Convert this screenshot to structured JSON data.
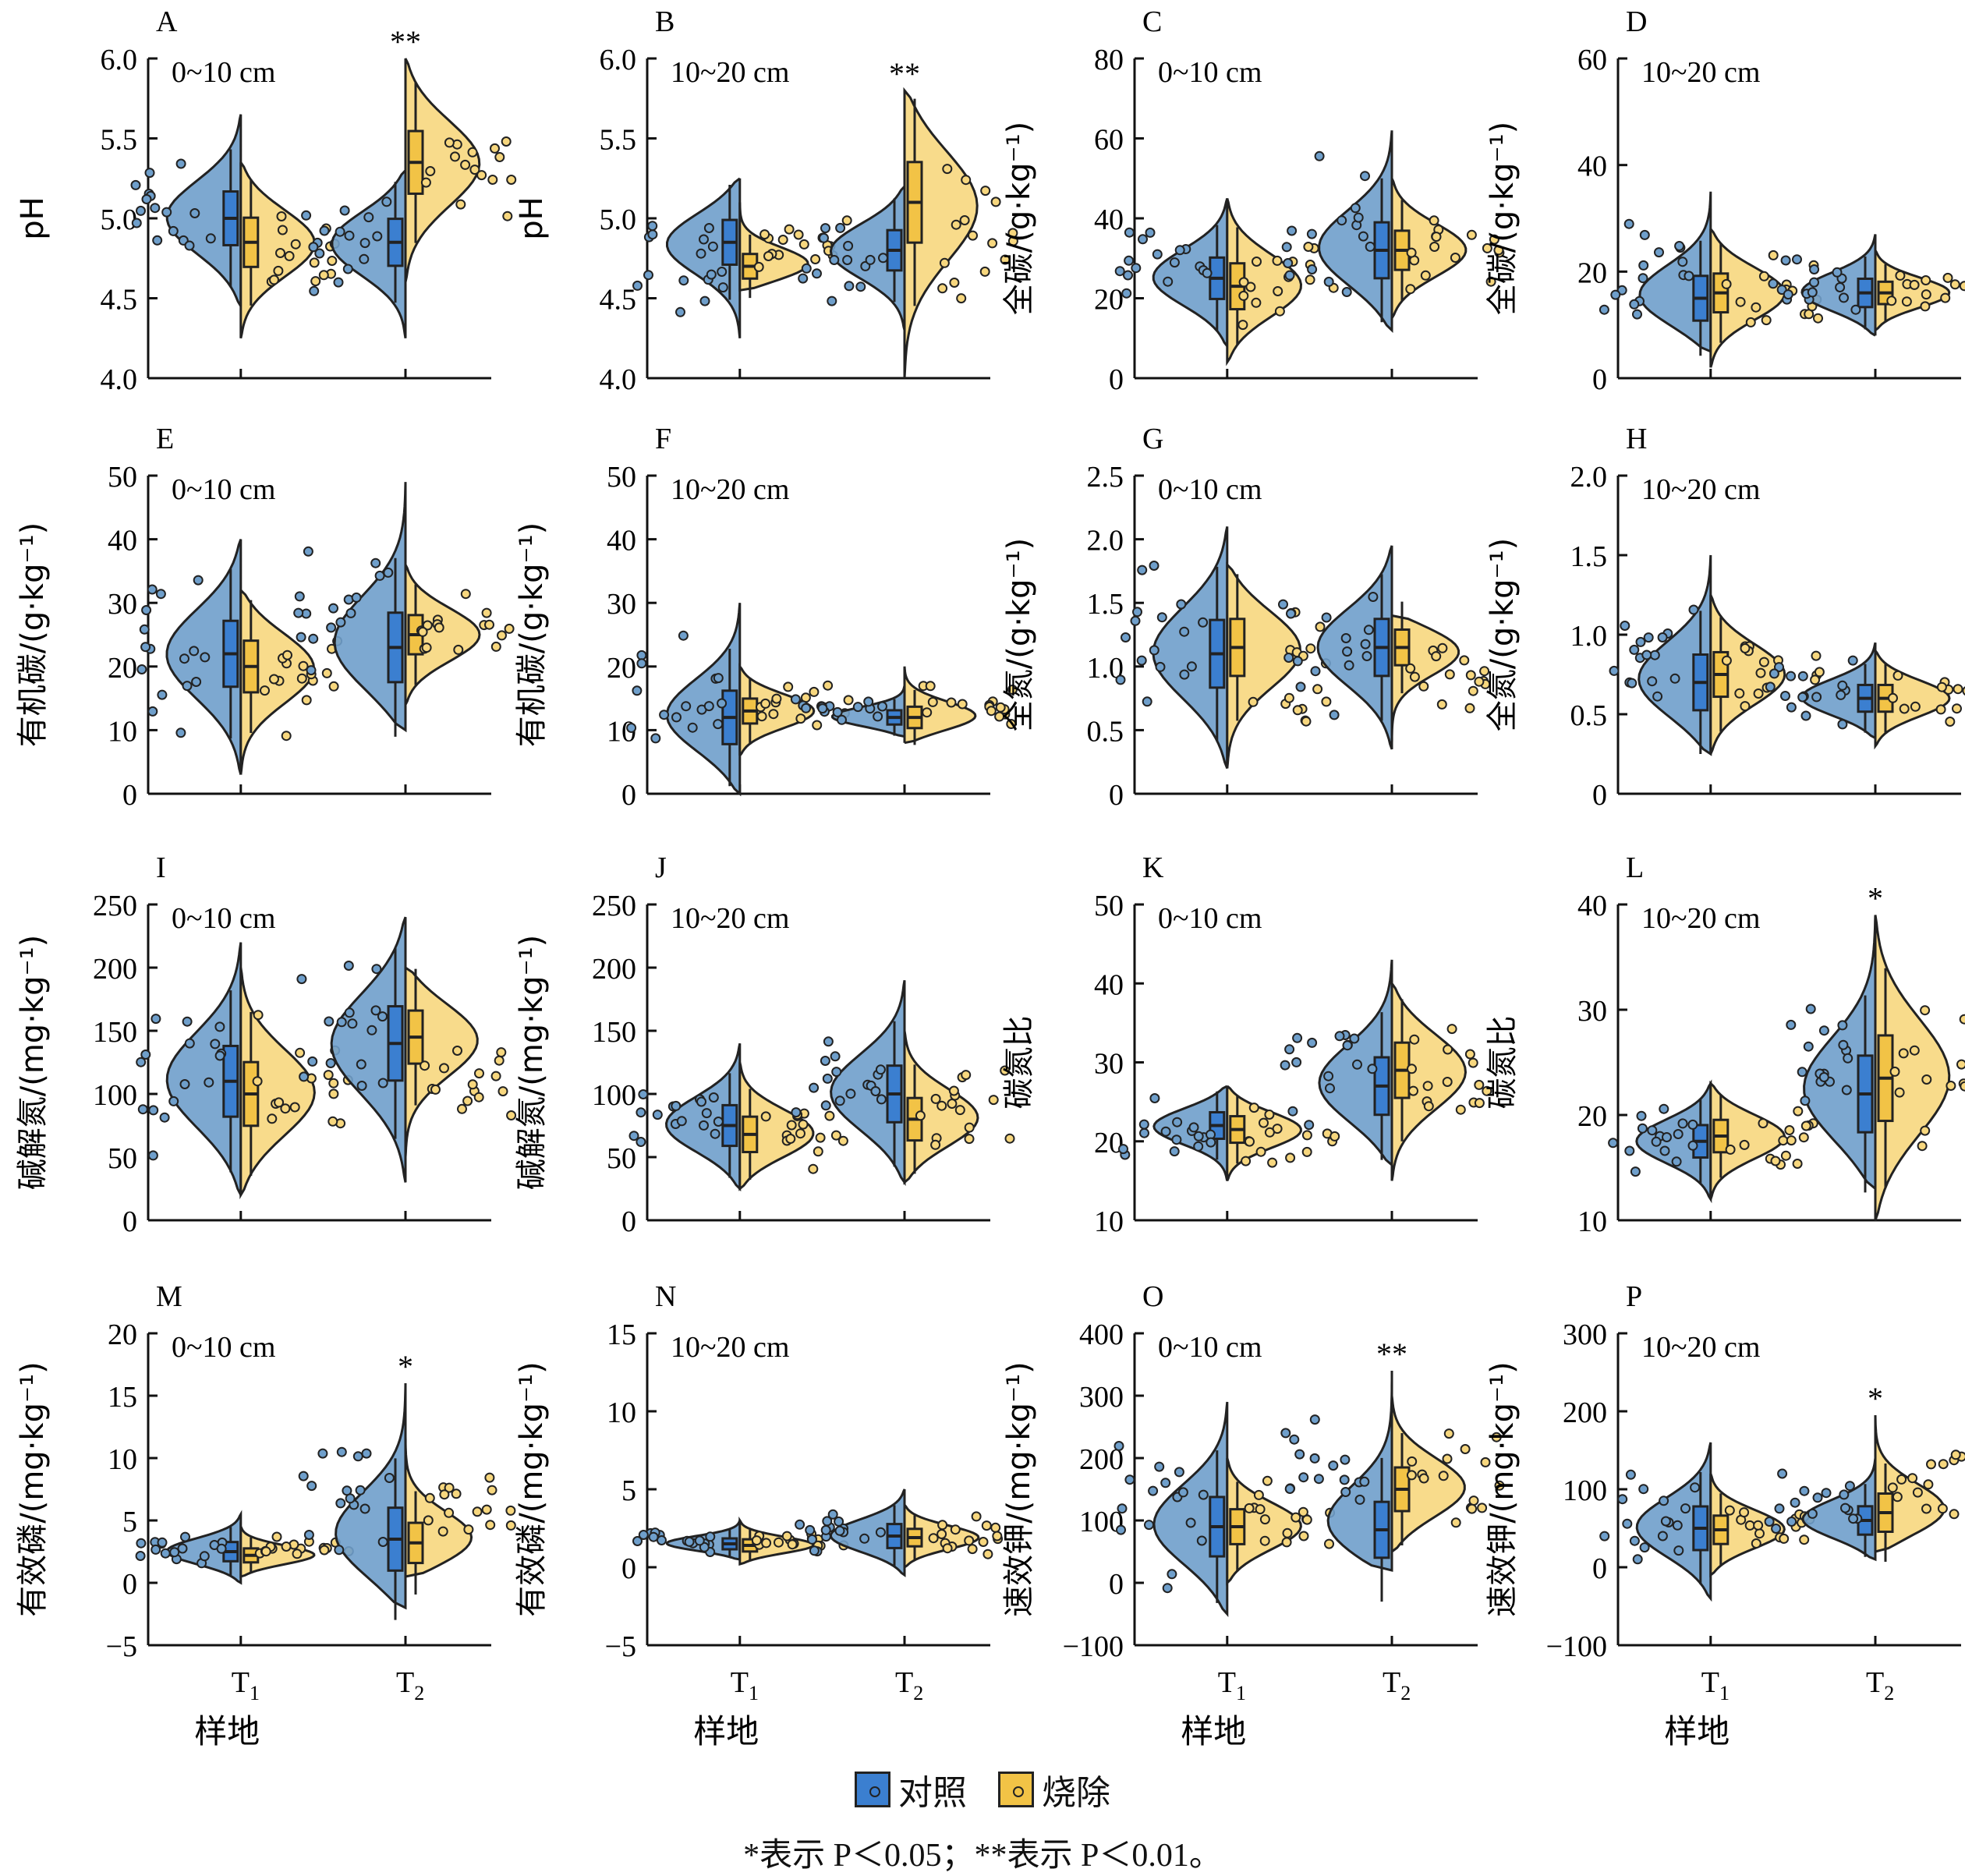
{
  "colors": {
    "control": "#6f9fcb",
    "burn": "#f7d77e",
    "control_box": "#3b7fd0",
    "burn_box": "#f2c346"
  },
  "legend": {
    "control": "对照",
    "burn": "烧除"
  },
  "footnote": "*表示 P＜0.05；**表示 P＜0.01。",
  "chart_data": [
    {
      "type": "violin",
      "panel": "A",
      "layer": "0~10 cm",
      "ylabel": "pH",
      "xlabel": "",
      "categories": [
        "T1",
        "T2"
      ],
      "ylim": [
        4.0,
        6.0
      ],
      "yticks": [
        "4.0",
        "4.5",
        "5.0",
        "5.5",
        "6.0"
      ],
      "series": [
        {
          "name": "对照",
          "medians": [
            5.0,
            4.85
          ],
          "ranges": [
            [
              4.45,
              5.65
            ],
            [
              4.25,
              5.3
            ]
          ]
        },
        {
          "name": "烧除",
          "medians": [
            4.85,
            5.35
          ],
          "ranges": [
            [
              4.25,
              5.35
            ],
            [
              4.6,
              6.0
            ]
          ]
        }
      ],
      "significance": [
        "",
        "**"
      ]
    },
    {
      "type": "violin",
      "panel": "B",
      "layer": "10~20 cm",
      "ylabel": "pH",
      "xlabel": "",
      "categories": [
        "T1",
        "T2"
      ],
      "ylim": [
        4.0,
        6.0
      ],
      "yticks": [
        "4.0",
        "4.5",
        "5.0",
        "5.5",
        "6.0"
      ],
      "series": [
        {
          "name": "对照",
          "medians": [
            4.85,
            4.8
          ],
          "ranges": [
            [
              4.25,
              5.25
            ],
            [
              4.3,
              5.2
            ]
          ]
        },
        {
          "name": "烧除",
          "medians": [
            4.7,
            5.1
          ],
          "ranges": [
            [
              4.55,
              5.1
            ],
            [
              4.0,
              5.8
            ]
          ]
        }
      ],
      "significance": [
        "",
        "**"
      ]
    },
    {
      "type": "violin",
      "panel": "C",
      "layer": "0~10 cm",
      "ylabel": "全碳/(g·kg⁻¹)",
      "xlabel": "",
      "categories": [
        "T1",
        "T2"
      ],
      "ylim": [
        0,
        80
      ],
      "yticks": [
        "0",
        "20",
        "40",
        "60",
        "80"
      ],
      "series": [
        {
          "name": "对照",
          "medians": [
            25,
            32
          ],
          "ranges": [
            [
              8,
              45
            ],
            [
              12,
              62
            ]
          ]
        },
        {
          "name": "烧除",
          "medians": [
            23,
            32
          ],
          "ranges": [
            [
              4,
              45
            ],
            [
              15,
              50
            ]
          ]
        }
      ],
      "significance": [
        "",
        ""
      ]
    },
    {
      "type": "violin",
      "panel": "D",
      "layer": "10~20 cm",
      "ylabel": "全碳/(g·kg⁻¹)",
      "xlabel": "",
      "categories": [
        "T1",
        "T2"
      ],
      "ylim": [
        0,
        60
      ],
      "yticks": [
        "0",
        "20",
        "40",
        "60"
      ],
      "series": [
        {
          "name": "对照",
          "medians": [
            15,
            16
          ],
          "ranges": [
            [
              5,
              35
            ],
            [
              8,
              27
            ]
          ]
        },
        {
          "name": "烧除",
          "medians": [
            16,
            16
          ],
          "ranges": [
            [
              2,
              28
            ],
            [
              9,
              24
            ]
          ]
        }
      ],
      "significance": [
        "",
        ""
      ]
    },
    {
      "type": "violin",
      "panel": "E",
      "layer": "0~10 cm",
      "ylabel": "有机碳/(g·kg⁻¹)",
      "xlabel": "",
      "categories": [
        "T1",
        "T2"
      ],
      "ylim": [
        0,
        50
      ],
      "yticks": [
        "0",
        "10",
        "20",
        "30",
        "40",
        "50"
      ],
      "series": [
        {
          "name": "对照",
          "medians": [
            22,
            23
          ],
          "ranges": [
            [
              3,
              40
            ],
            [
              10,
              49
            ]
          ]
        },
        {
          "name": "烧除",
          "medians": [
            20,
            25
          ],
          "ranges": [
            [
              3,
              32
            ],
            [
              14,
              36
            ]
          ]
        }
      ],
      "significance": [
        "",
        ""
      ]
    },
    {
      "type": "violin",
      "panel": "F",
      "layer": "10~20 cm",
      "ylabel": "有机碳/(g·kg⁻¹)",
      "xlabel": "",
      "categories": [
        "T1",
        "T2"
      ],
      "ylim": [
        0,
        50
      ],
      "yticks": [
        "0",
        "10",
        "20",
        "30",
        "40",
        "50"
      ],
      "series": [
        {
          "name": "对照",
          "medians": [
            12,
            12
          ],
          "ranges": [
            [
              0,
              30
            ],
            [
              9,
              17
            ]
          ]
        },
        {
          "name": "烧除",
          "medians": [
            13,
            12
          ],
          "ranges": [
            [
              6,
              20
            ],
            [
              8,
              20
            ]
          ]
        }
      ],
      "significance": [
        "",
        ""
      ]
    },
    {
      "type": "violin",
      "panel": "G",
      "layer": "0~10 cm",
      "ylabel": "全氮/(g·kg⁻¹)",
      "xlabel": "",
      "categories": [
        "T1",
        "T2"
      ],
      "ylim": [
        0,
        2.5
      ],
      "yticks": [
        "0",
        "0.5",
        "1.0",
        "1.5",
        "2.0",
        "2.5"
      ],
      "series": [
        {
          "name": "对照",
          "medians": [
            1.1,
            1.15
          ],
          "ranges": [
            [
              0.2,
              2.1
            ],
            [
              0.35,
              1.95
            ]
          ]
        },
        {
          "name": "烧除",
          "medians": [
            1.15,
            1.15
          ],
          "ranges": [
            [
              0.2,
              1.8
            ],
            [
              0.4,
              1.4
            ]
          ]
        }
      ],
      "significance": [
        "",
        ""
      ]
    },
    {
      "type": "violin",
      "panel": "H",
      "layer": "10~20 cm",
      "ylabel": "全氮/(g·kg⁻¹)",
      "xlabel": "",
      "categories": [
        "T1",
        "T2"
      ],
      "ylim": [
        0,
        2.0
      ],
      "yticks": [
        "0",
        "0.5",
        "1.0",
        "1.5",
        "2.0"
      ],
      "series": [
        {
          "name": "对照",
          "medians": [
            0.7,
            0.6
          ],
          "ranges": [
            [
              0.25,
              1.5
            ],
            [
              0.35,
              0.95
            ]
          ]
        },
        {
          "name": "烧除",
          "medians": [
            0.75,
            0.6
          ],
          "ranges": [
            [
              0.25,
              1.25
            ],
            [
              0.3,
              0.9
            ]
          ]
        }
      ],
      "significance": [
        "",
        ""
      ]
    },
    {
      "type": "violin",
      "panel": "I",
      "layer": "0~10 cm",
      "ylabel": "碱解氮/(mg·kg⁻¹)",
      "xlabel": "",
      "categories": [
        "T1",
        "T2"
      ],
      "ylim": [
        0,
        250
      ],
      "yticks": [
        "0",
        "50",
        "100",
        "150",
        "200",
        "250"
      ],
      "series": [
        {
          "name": "对照",
          "medians": [
            110,
            140
          ],
          "ranges": [
            [
              20,
              220
            ],
            [
              30,
              240
            ]
          ]
        },
        {
          "name": "烧除",
          "medians": [
            100,
            145
          ],
          "ranges": [
            [
              20,
              200
            ],
            [
              50,
              200
            ]
          ]
        }
      ],
      "significance": [
        "",
        ""
      ]
    },
    {
      "type": "violin",
      "panel": "J",
      "layer": "10~20 cm",
      "ylabel": "碱解氮/(mg·kg⁻¹)",
      "xlabel": "",
      "categories": [
        "T1",
        "T2"
      ],
      "ylim": [
        0,
        250
      ],
      "yticks": [
        "0",
        "50",
        "100",
        "150",
        "200",
        "250"
      ],
      "series": [
        {
          "name": "对照",
          "medians": [
            75,
            100
          ],
          "ranges": [
            [
              25,
              140
            ],
            [
              30,
              190
            ]
          ]
        },
        {
          "name": "烧除",
          "medians": [
            68,
            80
          ],
          "ranges": [
            [
              25,
              125
            ],
            [
              30,
              150
            ]
          ]
        }
      ],
      "significance": [
        "",
        ""
      ]
    },
    {
      "type": "violin",
      "panel": "K",
      "layer": "0~10 cm",
      "ylabel": "碳氮比",
      "xlabel": "",
      "categories": [
        "T1",
        "T2"
      ],
      "ylim": [
        10,
        50
      ],
      "yticks": [
        "10",
        "20",
        "30",
        "40",
        "50"
      ],
      "series": [
        {
          "name": "对照",
          "medians": [
            22,
            27
          ],
          "ranges": [
            [
              15,
              27
            ],
            [
              17,
              43
            ]
          ]
        },
        {
          "name": "烧除",
          "medians": [
            21.5,
            29
          ],
          "ranges": [
            [
              15,
              27
            ],
            [
              15,
              40
            ]
          ]
        }
      ],
      "significance": [
        "",
        ""
      ]
    },
    {
      "type": "violin",
      "panel": "L",
      "layer": "10~20 cm",
      "ylabel": "碳氮比",
      "xlabel": "",
      "categories": [
        "T1",
        "T2"
      ],
      "ylim": [
        10,
        40
      ],
      "yticks": [
        "10",
        "20",
        "30",
        "40"
      ],
      "series": [
        {
          "name": "对照",
          "medians": [
            17.5,
            22
          ],
          "ranges": [
            [
              12,
              23
            ],
            [
              13,
              39
            ]
          ]
        },
        {
          "name": "烧除",
          "medians": [
            18,
            23.5
          ],
          "ranges": [
            [
              12,
              23
            ],
            [
              10,
              39
            ]
          ]
        }
      ],
      "significance": [
        "",
        "*"
      ]
    },
    {
      "type": "violin",
      "panel": "M",
      "layer": "0~10 cm",
      "ylabel": "有效磷/(mg·kg⁻¹)",
      "xlabel": "样地",
      "categories": [
        "T1",
        "T2"
      ],
      "ylim": [
        -5,
        20
      ],
      "yticks": [
        "−5",
        "0",
        "5",
        "10",
        "15",
        "20"
      ],
      "series": [
        {
          "name": "对照",
          "medians": [
            2.5,
            3.5
          ],
          "ranges": [
            [
              0,
              5.5
            ],
            [
              -2,
              16
            ]
          ]
        },
        {
          "name": "烧除",
          "medians": [
            2.2,
            3.2
          ],
          "ranges": [
            [
              0.5,
              4.5
            ],
            [
              0.5,
              12
            ]
          ]
        }
      ],
      "significance": [
        "",
        "*"
      ]
    },
    {
      "type": "violin",
      "panel": "N",
      "layer": "10~20 cm",
      "ylabel": "有效磷/(mg·kg⁻¹)",
      "xlabel": "样地",
      "categories": [
        "T1",
        "T2"
      ],
      "ylim": [
        -5,
        15
      ],
      "yticks": [
        "−5",
        "0",
        "5",
        "10",
        "15"
      ],
      "series": [
        {
          "name": "对照",
          "medians": [
            1.5,
            2.0
          ],
          "ranges": [
            [
              0.5,
              3.0
            ],
            [
              -0.5,
              5.0
            ]
          ]
        },
        {
          "name": "烧除",
          "medians": [
            1.4,
            1.9
          ],
          "ranges": [
            [
              0.2,
              3.0
            ],
            [
              0,
              4.0
            ]
          ]
        }
      ],
      "significance": [
        "",
        ""
      ]
    },
    {
      "type": "violin",
      "panel": "O",
      "layer": "0~10 cm",
      "ylabel": "速效钾/(mg·kg⁻¹)",
      "xlabel": "样地",
      "categories": [
        "T1",
        "T2"
      ],
      "ylim": [
        -100,
        400
      ],
      "yticks": [
        "−100",
        "0",
        "100",
        "200",
        "300",
        "400"
      ],
      "series": [
        {
          "name": "对照",
          "medians": [
            90,
            85
          ],
          "ranges": [
            [
              -50,
              290
            ],
            [
              20,
              340
            ]
          ]
        },
        {
          "name": "烧除",
          "medians": [
            90,
            150
          ],
          "ranges": [
            [
              0,
              200
            ],
            [
              50,
              300
            ]
          ]
        }
      ],
      "significance": [
        "",
        "**"
      ]
    },
    {
      "type": "violin",
      "panel": "P",
      "layer": "10~20 cm",
      "ylabel": "速效钾/(mg·kg⁻¹)",
      "xlabel": "样地",
      "categories": [
        "T1",
        "T2"
      ],
      "ylim": [
        -100,
        300
      ],
      "yticks": [
        "−100",
        "0",
        "100",
        "200",
        "300"
      ],
      "series": [
        {
          "name": "对照",
          "medians": [
            50,
            60
          ],
          "ranges": [
            [
              -40,
              160
            ],
            [
              10,
              140
            ]
          ]
        },
        {
          "name": "烧除",
          "medians": [
            48,
            70
          ],
          "ranges": [
            [
              -10,
              120
            ],
            [
              20,
              195
            ]
          ]
        }
      ],
      "significance": [
        "",
        "*"
      ]
    }
  ]
}
